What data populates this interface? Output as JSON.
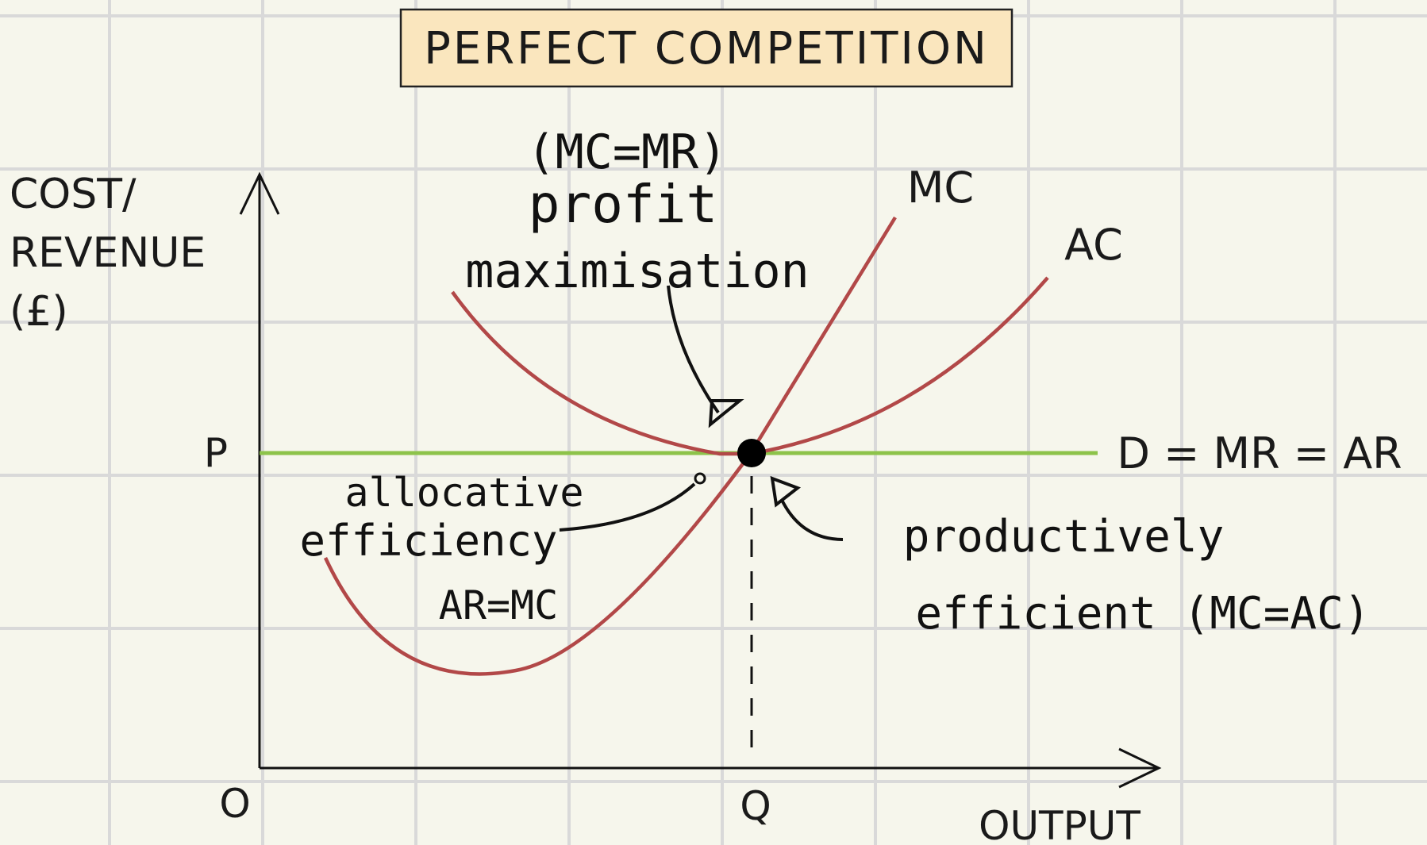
{
  "title": "PERFECT COMPETITION",
  "axes": {
    "y_label_lines": [
      "COST/",
      "REVENUE",
      "(£)"
    ],
    "x_label": "OUTPUT",
    "origin": "O",
    "price_label": "P",
    "quantity_label": "Q"
  },
  "curves": {
    "mc_label": "MC",
    "ac_label": "AC",
    "demand_label": "D = MR = AR"
  },
  "annotations": {
    "profit_lines": [
      "(MC=MR)",
      "profit",
      "maximisation"
    ],
    "allocative_lines": [
      "allocative",
      "efficiency",
      "AR=MC"
    ],
    "productive_lines": [
      "productively",
      "efficient (MC=AC)"
    ]
  },
  "colors": {
    "background": "#f6f6ec",
    "grid": "#d9d9d9",
    "title_box": "#fae6be",
    "cost_curves": "#b24848",
    "demand_line": "#8dc34a",
    "axis": "#111111"
  }
}
